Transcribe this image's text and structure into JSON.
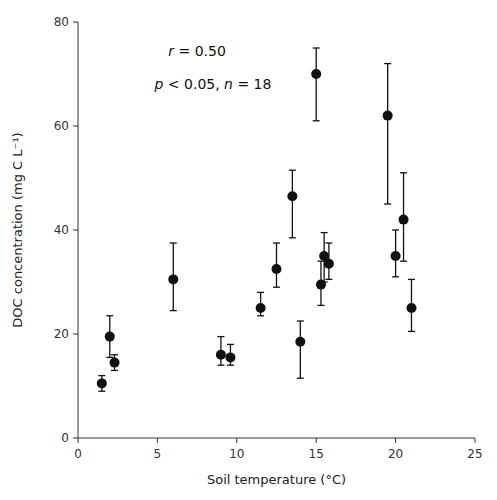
{
  "chart_data": {
    "type": "scatter",
    "x": [
      1.5,
      2.0,
      2.3,
      6.0,
      9.0,
      9.6,
      11.5,
      12.5,
      13.5,
      14.0,
      15.0,
      15.3,
      15.5,
      15.8,
      19.5,
      20.0,
      20.5,
      21.0
    ],
    "values": [
      10.5,
      19.5,
      14.5,
      30.5,
      16.0,
      15.5,
      25.0,
      32.5,
      46.5,
      18.5,
      70.0,
      29.5,
      35.0,
      33.5,
      62.0,
      35.0,
      42.0,
      25.0
    ],
    "yerr_low": [
      1.5,
      4.0,
      1.5,
      6.0,
      2.0,
      1.5,
      1.5,
      3.5,
      8.0,
      7.0,
      9.0,
      4.0,
      5.0,
      3.0,
      17.0,
      4.0,
      8.0,
      4.5
    ],
    "yerr_high": [
      1.5,
      4.0,
      1.5,
      7.0,
      3.5,
      2.5,
      3.0,
      5.0,
      5.0,
      4.0,
      5.0,
      4.5,
      4.5,
      4.0,
      10.0,
      5.0,
      9.0,
      5.5
    ],
    "color": "#111111",
    "marker": "circle",
    "xlim": [
      0,
      25
    ],
    "ylim": [
      0,
      80
    ],
    "xticks": [
      0,
      5,
      10,
      15,
      20,
      25
    ],
    "yticks": [
      0,
      20,
      40,
      60,
      80
    ],
    "xlabel": "Soil temperature (°C)",
    "ylabel": "DOC concentration (mg C L⁻¹)",
    "annotations": [
      "r = 0.50",
      "p < 0.05, n = 18"
    ],
    "grid": false
  }
}
